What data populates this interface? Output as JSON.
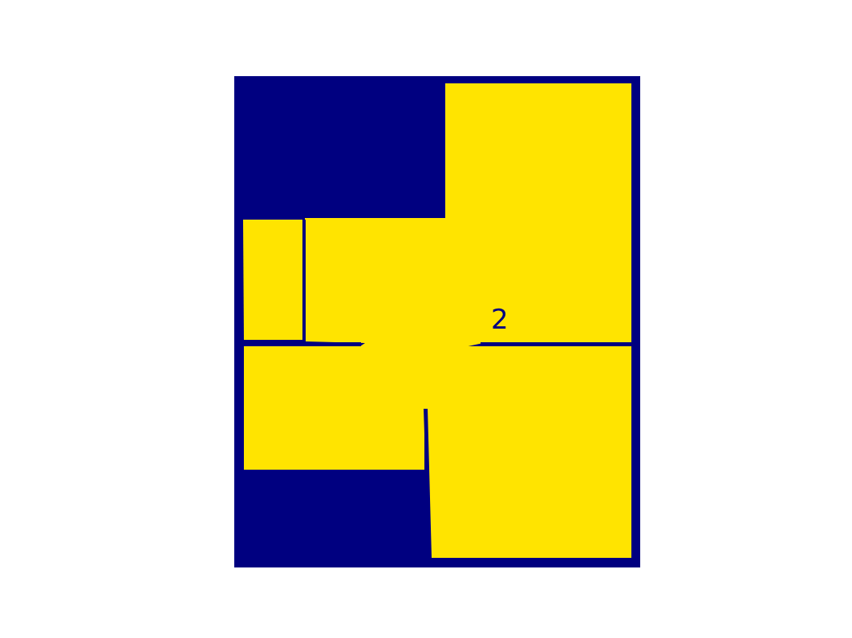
{
  "plan": {
    "background_color": "#ffffff",
    "wall_color": "#000080",
    "floor_color": "#ffe400",
    "label_color": "#000080",
    "room_label": "2"
  }
}
